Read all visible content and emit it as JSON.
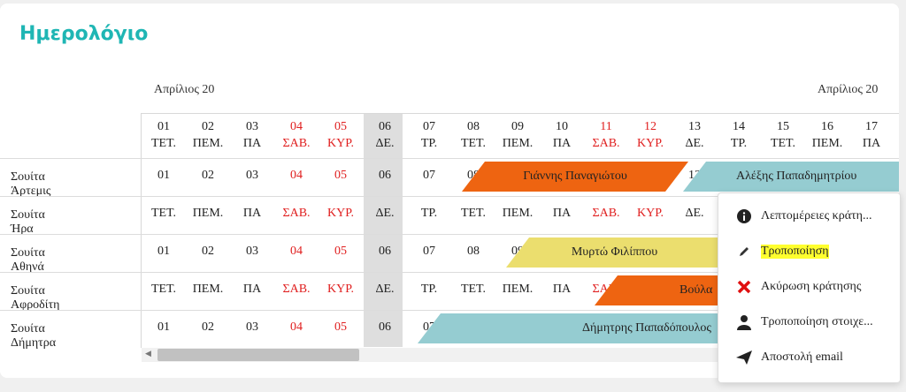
{
  "title": "Ημερολόγιο",
  "months": [
    "Απρίλιος 20",
    "Απρίλιος 20"
  ],
  "days": [
    {
      "num": "01",
      "dow": "ΤΕΤ.",
      "red": false
    },
    {
      "num": "02",
      "dow": "ΠΕΜ.",
      "red": false
    },
    {
      "num": "03",
      "dow": "ΠΑ",
      "red": false
    },
    {
      "num": "04",
      "dow": "ΣΑΒ.",
      "red": true
    },
    {
      "num": "05",
      "dow": "ΚΥΡ.",
      "red": true
    },
    {
      "num": "06",
      "dow": "ΔΕ.",
      "red": false
    },
    {
      "num": "07",
      "dow": "ΤΡ.",
      "red": false
    },
    {
      "num": "08",
      "dow": "ΤΕΤ.",
      "red": false
    },
    {
      "num": "09",
      "dow": "ΠΕΜ.",
      "red": false
    },
    {
      "num": "10",
      "dow": "ΠΑ",
      "red": false
    },
    {
      "num": "11",
      "dow": "ΣΑΒ.",
      "red": true
    },
    {
      "num": "12",
      "dow": "ΚΥΡ.",
      "red": true
    },
    {
      "num": "13",
      "dow": "ΔΕ.",
      "red": false
    },
    {
      "num": "14",
      "dow": "ΤΡ.",
      "red": false
    },
    {
      "num": "15",
      "dow": "ΤΕΤ.",
      "red": false
    },
    {
      "num": "16",
      "dow": "ΠΕΜ.",
      "red": false
    },
    {
      "num": "17",
      "dow": "ΠΑ",
      "red": false
    }
  ],
  "rooms": [
    {
      "name": "Σουίτα Άρτεμις",
      "type": "num"
    },
    {
      "name": "Σουίτα Ήρα",
      "type": "dow"
    },
    {
      "name": "Σουίτα Αθηνά",
      "type": "num"
    },
    {
      "name": "Σουίτα Αφροδίτη",
      "type": "dow"
    },
    {
      "name": "Σουίτα Δήμητρα",
      "type": "num"
    }
  ],
  "bookings": [
    {
      "guest": "Γιάννης Παναγιώτου",
      "color": "#ee6411"
    },
    {
      "guest": "Αλέξης Παπαδημητρίου",
      "color": "#95ccd1"
    },
    {
      "guest": "Μυρτώ Φιλίππου",
      "color": "#ebde6e"
    },
    {
      "guest": "Βούλα",
      "color": "#ee6411"
    },
    {
      "guest": "Δήμητρης Παπαδόπουλος",
      "color": "#95ccd1"
    }
  ],
  "context_menu": {
    "items": [
      {
        "label": "Λεπτομέρειες κράτη...",
        "icon": "info-icon"
      },
      {
        "label": "Τροποποίηση",
        "icon": "pencil-icon",
        "highlighted": true
      },
      {
        "label": "Ακύρωση κράτησης",
        "icon": "cross-icon"
      },
      {
        "label": "Τροποποίηση στοιχε...",
        "icon": "user-icon"
      },
      {
        "label": "Αποστολή email",
        "icon": "send-icon"
      }
    ]
  }
}
